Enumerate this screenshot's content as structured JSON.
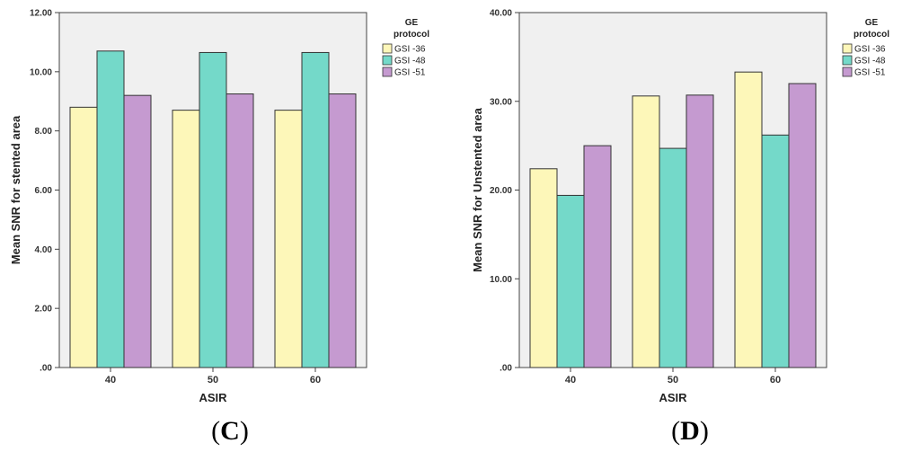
{
  "chart_data": [
    {
      "type": "bar",
      "panel_label_open": "(",
      "panel_label_letter": "C",
      "panel_label_close": ")",
      "xlabel": "ASIR",
      "ylabel": "Mean SNR for stented area",
      "categories": [
        "40",
        "50",
        "60"
      ],
      "ylim": [
        0,
        12
      ],
      "yticks": [
        ".00",
        "2.00",
        "4.00",
        "6.00",
        "8.00",
        "10.00",
        "12.00"
      ],
      "ytick_values": [
        0,
        2,
        4,
        6,
        8,
        10,
        12
      ],
      "legend_title": [
        "GE",
        "protocol"
      ],
      "series": [
        {
          "name": "GSI -36",
          "color": "#fdf7b9",
          "values": [
            8.8,
            8.7,
            8.7
          ]
        },
        {
          "name": "GSI -48",
          "color": "#74d9c9",
          "values": [
            10.7,
            10.65,
            10.65
          ]
        },
        {
          "name": "GSI -51",
          "color": "#c59ad0",
          "values": [
            9.2,
            9.25,
            9.25
          ]
        }
      ]
    },
    {
      "type": "bar",
      "panel_label_open": "(",
      "panel_label_letter": "D",
      "panel_label_close": ")",
      "xlabel": "ASIR",
      "ylabel": "Mean SNR for Unstented area",
      "categories": [
        "40",
        "50",
        "60"
      ],
      "ylim": [
        0,
        40
      ],
      "yticks": [
        ".00",
        "10.00",
        "20.00",
        "30.00",
        "40.00"
      ],
      "ytick_values": [
        0,
        10,
        20,
        30,
        40
      ],
      "legend_title": [
        "GE",
        "protocol"
      ],
      "series": [
        {
          "name": "GSI -36",
          "color": "#fdf7b9",
          "values": [
            22.4,
            30.6,
            33.3
          ]
        },
        {
          "name": "GSI -48",
          "color": "#74d9c9",
          "values": [
            19.4,
            24.7,
            26.2
          ]
        },
        {
          "name": "GSI -51",
          "color": "#c59ad0",
          "values": [
            25.0,
            30.7,
            32.0
          ]
        }
      ]
    }
  ]
}
